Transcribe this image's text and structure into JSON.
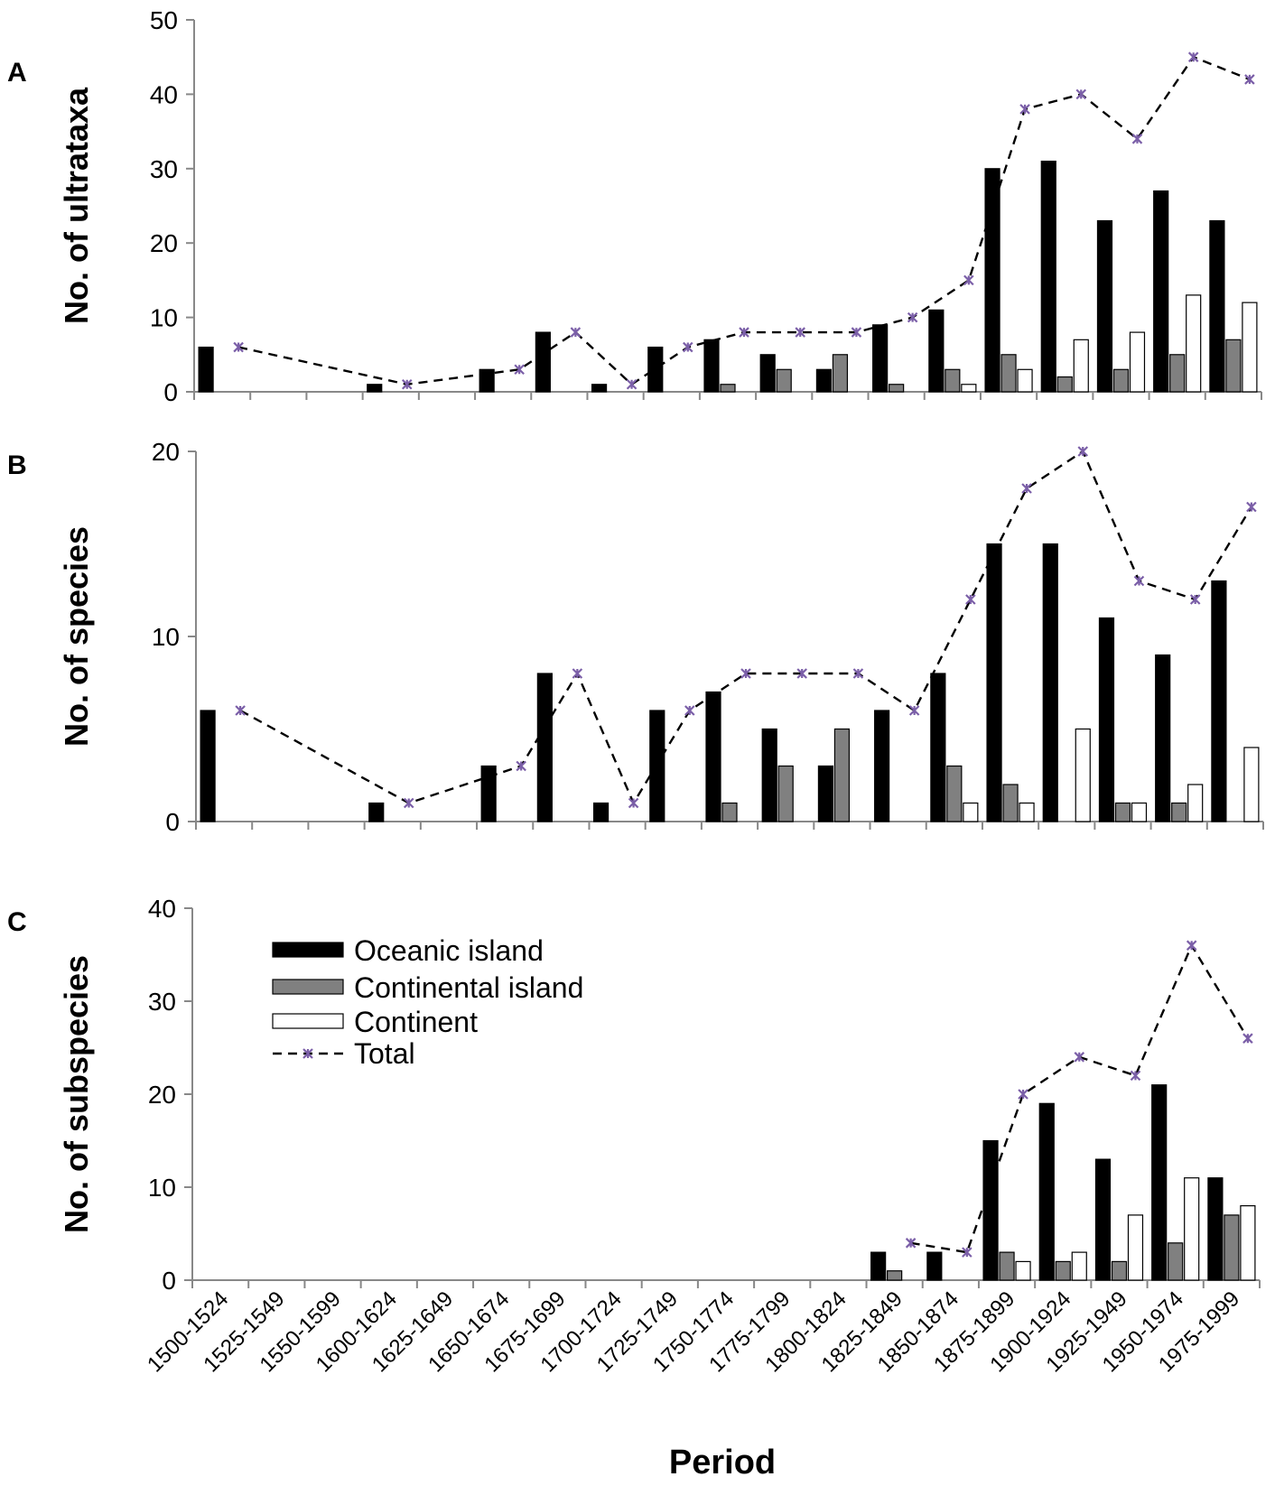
{
  "chart_data": [
    {
      "type": "bar",
      "panel_label": "A",
      "ylabel": "No. of ultrataxa",
      "xlabel": "",
      "ylim": [
        0,
        50
      ],
      "yticks": [
        0,
        10,
        20,
        30,
        40,
        50
      ],
      "categories": [
        "1500-1524",
        "1525-1549",
        "1550-1599",
        "1600-1624",
        "1625-1649",
        "1650-1674",
        "1675-1699",
        "1700-1724",
        "1725-1749",
        "1750-1774",
        "1775-1799",
        "1800-1824",
        "1825-1849",
        "1850-1874",
        "1875-1899",
        "1900-1924",
        "1925-1949",
        "1950-1974",
        "1975-1999"
      ],
      "series": [
        {
          "name": "Oceanic island",
          "kind": "bar",
          "color": "#000000",
          "values": [
            6,
            0,
            0,
            1,
            0,
            3,
            8,
            1,
            6,
            7,
            5,
            3,
            9,
            11,
            30,
            31,
            23,
            27,
            23
          ]
        },
        {
          "name": "Continental island",
          "kind": "bar",
          "color": "#808080",
          "values": [
            0,
            0,
            0,
            0,
            0,
            0,
            0,
            0,
            0,
            1,
            3,
            5,
            1,
            3,
            5,
            2,
            3,
            5,
            7
          ]
        },
        {
          "name": "Continent",
          "kind": "bar",
          "color": "#ffffff",
          "values": [
            0,
            0,
            0,
            0,
            0,
            0,
            0,
            0,
            0,
            0,
            0,
            0,
            0,
            1,
            3,
            7,
            8,
            13,
            12
          ]
        },
        {
          "name": "Total",
          "kind": "line",
          "color": "#7b5fa8",
          "values": [
            6,
            null,
            null,
            1,
            null,
            3,
            8,
            1,
            6,
            8,
            8,
            8,
            10,
            15,
            38,
            40,
            34,
            45,
            42
          ]
        }
      ]
    },
    {
      "type": "bar",
      "panel_label": "B",
      "ylabel": "No. of species",
      "xlabel": "",
      "ylim": [
        0,
        20
      ],
      "yticks": [
        0,
        10,
        20
      ],
      "categories": [
        "1500-1524",
        "1525-1549",
        "1550-1599",
        "1600-1624",
        "1625-1649",
        "1650-1674",
        "1675-1699",
        "1700-1724",
        "1725-1749",
        "1750-1774",
        "1775-1799",
        "1800-1824",
        "1825-1849",
        "1850-1874",
        "1875-1899",
        "1900-1924",
        "1925-1949",
        "1950-1974",
        "1975-1999"
      ],
      "series": [
        {
          "name": "Oceanic island",
          "kind": "bar",
          "color": "#000000",
          "values": [
            6,
            0,
            0,
            1,
            0,
            3,
            8,
            1,
            6,
            7,
            5,
            3,
            6,
            8,
            15,
            15,
            11,
            9,
            13
          ]
        },
        {
          "name": "Continental island",
          "kind": "bar",
          "color": "#808080",
          "values": [
            0,
            0,
            0,
            0,
            0,
            0,
            0,
            0,
            0,
            1,
            3,
            5,
            0,
            3,
            2,
            0,
            1,
            1,
            0
          ]
        },
        {
          "name": "Continent",
          "kind": "bar",
          "color": "#ffffff",
          "values": [
            0,
            0,
            0,
            0,
            0,
            0,
            0,
            0,
            0,
            0,
            0,
            0,
            0,
            1,
            1,
            5,
            1,
            2,
            4
          ]
        },
        {
          "name": "Total",
          "kind": "line",
          "color": "#7b5fa8",
          "values": [
            6,
            null,
            null,
            1,
            null,
            3,
            8,
            1,
            6,
            8,
            8,
            8,
            6,
            12,
            18,
            20,
            13,
            12,
            17
          ]
        }
      ]
    },
    {
      "type": "bar",
      "panel_label": "C",
      "ylabel": "No. of subspecies",
      "xlabel": "Period",
      "ylim": [
        0,
        40
      ],
      "yticks": [
        0,
        10,
        20,
        30,
        40
      ],
      "categories": [
        "1500-1524",
        "1525-1549",
        "1550-1599",
        "1600-1624",
        "1625-1649",
        "1650-1674",
        "1675-1699",
        "1700-1724",
        "1725-1749",
        "1750-1774",
        "1775-1799",
        "1800-1824",
        "1825-1849",
        "1850-1874",
        "1875-1899",
        "1900-1924",
        "1925-1949",
        "1950-1974",
        "1975-1999"
      ],
      "series": [
        {
          "name": "Oceanic island",
          "kind": "bar",
          "color": "#000000",
          "values": [
            0,
            0,
            0,
            0,
            0,
            0,
            0,
            0,
            0,
            0,
            0,
            0,
            3,
            3,
            15,
            19,
            13,
            21,
            11
          ]
        },
        {
          "name": "Continental island",
          "kind": "bar",
          "color": "#808080",
          "values": [
            0,
            0,
            0,
            0,
            0,
            0,
            0,
            0,
            0,
            0,
            0,
            0,
            1,
            0,
            3,
            2,
            2,
            4,
            7
          ]
        },
        {
          "name": "Continent",
          "kind": "bar",
          "color": "#ffffff",
          "values": [
            0,
            0,
            0,
            0,
            0,
            0,
            0,
            0,
            0,
            0,
            0,
            0,
            0,
            0,
            2,
            3,
            7,
            11,
            8
          ]
        },
        {
          "name": "Total",
          "kind": "line",
          "color": "#7b5fa8",
          "values": [
            null,
            null,
            null,
            null,
            null,
            null,
            null,
            null,
            null,
            null,
            null,
            null,
            4,
            3,
            20,
            24,
            22,
            36,
            26
          ]
        }
      ],
      "legend": {
        "placement": "top-left",
        "entries": [
          "Oceanic island",
          "Continental island",
          "Continent",
          "Total"
        ]
      }
    }
  ]
}
